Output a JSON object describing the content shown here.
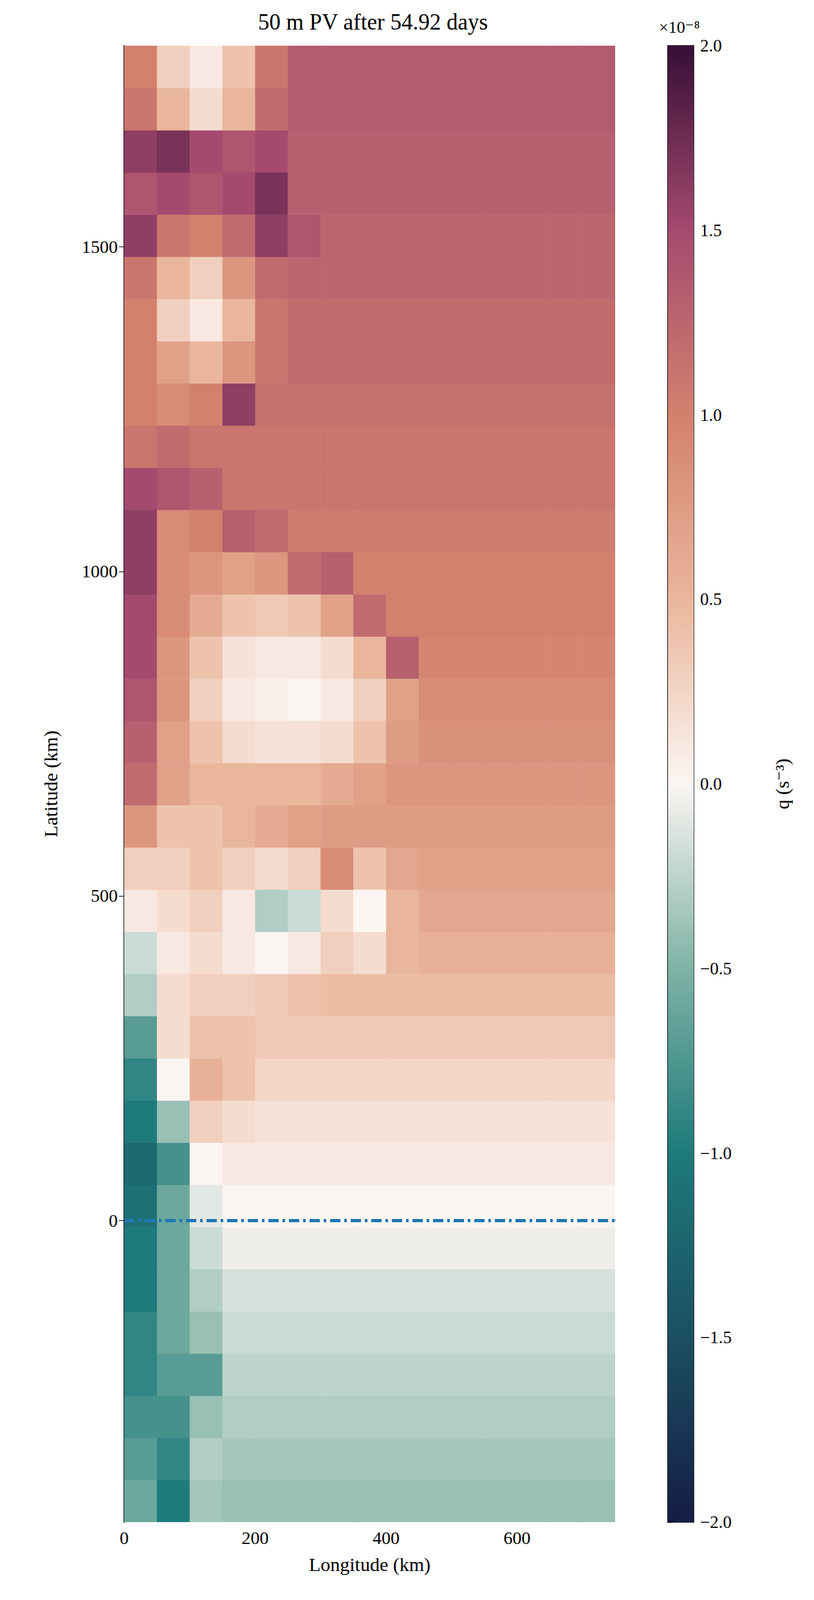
{
  "chart_data": {
    "type": "heatmap",
    "title": "50 m PV after 54.92 days",
    "xlabel": "Longitude (km)",
    "ylabel": "Latitude (km)",
    "xlim": [
      0,
      750
    ],
    "ylim": [
      -465,
      1810
    ],
    "xticks": [
      0,
      200,
      400,
      600
    ],
    "yticks": [
      0,
      500,
      1000,
      1500
    ],
    "grid": false,
    "reference_line": {
      "y": 0,
      "color": "#1f77b4",
      "line_style": "dashdot"
    },
    "colorbar_label": "q (s⁻³)",
    "colorbar_multiplier": "×10⁻⁸",
    "clim": [
      -2,
      2
    ],
    "cticks": [
      {
        "value": -2,
        "label": "−2.0"
      },
      {
        "value": -1.5,
        "label": "−1.5"
      },
      {
        "value": -1,
        "label": "−1.0"
      },
      {
        "value": -0.5,
        "label": "−0.5"
      },
      {
        "value": 0,
        "label": "0.0"
      },
      {
        "value": 0.5,
        "label": "0.5"
      },
      {
        "value": 1,
        "label": "1.0"
      },
      {
        "value": 1.5,
        "label": "1.5"
      },
      {
        "value": 2,
        "label": "2.0"
      }
    ],
    "colormap": [
      "#151d44",
      "#1b4f63",
      "#1e7a7b",
      "#7fb3a6",
      "#fbf5f2",
      "#eab69b",
      "#d3816e",
      "#a54a6f",
      "#360e36"
    ],
    "x": [
      25,
      75,
      125,
      175,
      225,
      275,
      325,
      375,
      425,
      475,
      525,
      575,
      625,
      675,
      725
    ],
    "y": [
      -432.5,
      -367.5,
      -302.5,
      -237.5,
      -172.5,
      -107.5,
      -42.5,
      22.5,
      87.5,
      152.5,
      217.5,
      282.5,
      347.5,
      412.5,
      477.5,
      542.5,
      607.5,
      672.5,
      737.5,
      802.5,
      867.5,
      932.5,
      997.5,
      1062.5,
      1127.5,
      1192.5,
      1257.5,
      1322.5,
      1387.5,
      1452.5,
      1517.5,
      1582.5,
      1647.5,
      1712.5,
      1777.5
    ],
    "cells": [
      [
        -0.6,
        -1.0,
        -0.35,
        -0.4,
        -0.4,
        -0.4,
        -0.4,
        -0.4,
        -0.4,
        -0.4,
        -0.4,
        -0.4,
        -0.4,
        -0.4,
        -0.4
      ],
      [
        -0.7,
        -0.9,
        -0.3,
        -0.35,
        -0.35,
        -0.35,
        -0.35,
        -0.35,
        -0.35,
        -0.35,
        -0.35,
        -0.35,
        -0.35,
        -0.35,
        -0.35
      ],
      [
        -0.8,
        -0.8,
        -0.4,
        -0.3,
        -0.3,
        -0.3,
        -0.3,
        -0.3,
        -0.3,
        -0.3,
        -0.3,
        -0.3,
        -0.3,
        -0.3,
        -0.3
      ],
      [
        -0.9,
        -0.7,
        -0.7,
        -0.25,
        -0.25,
        -0.25,
        -0.25,
        -0.25,
        -0.25,
        -0.25,
        -0.25,
        -0.25,
        -0.25,
        -0.25,
        -0.25
      ],
      [
        -0.9,
        -0.6,
        -0.4,
        -0.2,
        -0.2,
        -0.2,
        -0.2,
        -0.2,
        -0.2,
        -0.2,
        -0.2,
        -0.2,
        -0.2,
        -0.2,
        -0.2
      ],
      [
        -1.0,
        -0.6,
        -0.3,
        -0.15,
        -0.15,
        -0.15,
        -0.15,
        -0.15,
        -0.15,
        -0.15,
        -0.15,
        -0.15,
        -0.15,
        -0.15,
        -0.15
      ],
      [
        -1.0,
        -0.6,
        -0.2,
        -0.05,
        -0.05,
        -0.05,
        -0.05,
        -0.05,
        -0.05,
        -0.05,
        -0.05,
        -0.05,
        -0.05,
        -0.05,
        -0.05
      ],
      [
        -1.1,
        -0.6,
        -0.1,
        0.0,
        0.0,
        0.0,
        0.0,
        0.0,
        0.0,
        0.0,
        0.0,
        0.0,
        0.0,
        0.0,
        0.0
      ],
      [
        -1.2,
        -0.8,
        0.0,
        0.1,
        0.1,
        0.1,
        0.1,
        0.1,
        0.1,
        0.1,
        0.1,
        0.1,
        0.1,
        0.1,
        0.1
      ],
      [
        -1.0,
        -0.4,
        0.3,
        0.2,
        0.15,
        0.15,
        0.15,
        0.15,
        0.15,
        0.15,
        0.15,
        0.15,
        0.15,
        0.15,
        0.15
      ],
      [
        -0.9,
        0.0,
        0.55,
        0.4,
        0.25,
        0.25,
        0.25,
        0.25,
        0.25,
        0.25,
        0.25,
        0.25,
        0.25,
        0.25,
        0.25
      ],
      [
        -0.7,
        0.2,
        0.4,
        0.4,
        0.35,
        0.35,
        0.35,
        0.35,
        0.35,
        0.35,
        0.35,
        0.35,
        0.35,
        0.35,
        0.35
      ],
      [
        -0.3,
        0.2,
        0.3,
        0.3,
        0.35,
        0.4,
        0.45,
        0.45,
        0.45,
        0.45,
        0.45,
        0.45,
        0.45,
        0.45,
        0.45
      ],
      [
        -0.2,
        0.1,
        0.2,
        0.1,
        0.0,
        0.1,
        0.3,
        0.2,
        0.5,
        0.55,
        0.55,
        0.55,
        0.55,
        0.55,
        0.55
      ],
      [
        0.1,
        0.2,
        0.3,
        0.1,
        -0.3,
        -0.2,
        0.2,
        0.0,
        0.5,
        0.65,
        0.65,
        0.65,
        0.65,
        0.65,
        0.65
      ],
      [
        0.3,
        0.3,
        0.4,
        0.3,
        0.2,
        0.3,
        0.9,
        0.4,
        0.65,
        0.7,
        0.7,
        0.7,
        0.7,
        0.7,
        0.7
      ],
      [
        0.8,
        0.4,
        0.4,
        0.5,
        0.6,
        0.7,
        0.75,
        0.75,
        0.75,
        0.75,
        0.75,
        0.75,
        0.75,
        0.75,
        0.75
      ],
      [
        1.2,
        0.7,
        0.5,
        0.5,
        0.5,
        0.5,
        0.6,
        0.7,
        0.8,
        0.8,
        0.8,
        0.8,
        0.8,
        0.8,
        0.8
      ],
      [
        1.3,
        0.7,
        0.4,
        0.2,
        0.15,
        0.15,
        0.2,
        0.4,
        0.75,
        0.85,
        0.85,
        0.85,
        0.85,
        0.85,
        0.85
      ],
      [
        1.4,
        0.8,
        0.3,
        0.1,
        0.05,
        0.0,
        0.1,
        0.3,
        0.7,
        0.9,
        0.9,
        0.9,
        0.9,
        0.9,
        0.9
      ],
      [
        1.5,
        0.8,
        0.4,
        0.15,
        0.1,
        0.1,
        0.2,
        0.5,
        1.3,
        0.95,
        0.95,
        0.95,
        0.95,
        0.95,
        0.95
      ],
      [
        1.5,
        0.9,
        0.6,
        0.4,
        0.35,
        0.4,
        0.7,
        1.2,
        1.0,
        1.0,
        1.0,
        1.0,
        1.0,
        1.0,
        1.0
      ],
      [
        1.6,
        0.9,
        0.8,
        0.7,
        0.8,
        1.2,
        1.3,
        1.0,
        1.0,
        1.0,
        1.0,
        1.0,
        1.0,
        1.0,
        1.0
      ],
      [
        1.6,
        0.9,
        1.0,
        1.3,
        1.2,
        1.05,
        1.05,
        1.05,
        1.05,
        1.05,
        1.05,
        1.05,
        1.05,
        1.05,
        1.05
      ],
      [
        1.5,
        1.4,
        1.3,
        1.1,
        1.1,
        1.1,
        1.1,
        1.1,
        1.1,
        1.1,
        1.1,
        1.1,
        1.1,
        1.1,
        1.1
      ],
      [
        1.1,
        1.2,
        1.1,
        1.1,
        1.1,
        1.1,
        1.1,
        1.1,
        1.1,
        1.1,
        1.1,
        1.1,
        1.1,
        1.1,
        1.1
      ],
      [
        1.0,
        0.9,
        1.0,
        1.6,
        1.15,
        1.15,
        1.15,
        1.15,
        1.15,
        1.15,
        1.15,
        1.15,
        1.15,
        1.15,
        1.15
      ],
      [
        1.0,
        0.7,
        0.5,
        0.8,
        1.1,
        1.2,
        1.2,
        1.2,
        1.2,
        1.2,
        1.2,
        1.2,
        1.2,
        1.2,
        1.2
      ],
      [
        1.0,
        0.3,
        0.1,
        0.5,
        1.1,
        1.2,
        1.2,
        1.2,
        1.2,
        1.2,
        1.2,
        1.2,
        1.2,
        1.2,
        1.2
      ],
      [
        1.1,
        0.5,
        0.3,
        0.8,
        1.2,
        1.25,
        1.25,
        1.25,
        1.25,
        1.25,
        1.25,
        1.25,
        1.25,
        1.25,
        1.25
      ],
      [
        1.6,
        1.1,
        1.0,
        1.2,
        1.6,
        1.4,
        1.25,
        1.25,
        1.25,
        1.25,
        1.25,
        1.25,
        1.25,
        1.25,
        1.25
      ],
      [
        1.4,
        1.5,
        1.4,
        1.5,
        1.7,
        1.3,
        1.3,
        1.3,
        1.3,
        1.3,
        1.3,
        1.3,
        1.3,
        1.3,
        1.3
      ],
      [
        1.6,
        1.7,
        1.5,
        1.4,
        1.5,
        1.3,
        1.3,
        1.3,
        1.3,
        1.3,
        1.3,
        1.3,
        1.3,
        1.3,
        1.3
      ],
      [
        1.1,
        0.5,
        0.2,
        0.5,
        1.2,
        1.35,
        1.35,
        1.35,
        1.35,
        1.35,
        1.35,
        1.35,
        1.35,
        1.35,
        1.35
      ],
      [
        1.0,
        0.3,
        0.1,
        0.4,
        1.1,
        1.35,
        1.35,
        1.35,
        1.35,
        1.35,
        1.35,
        1.35,
        1.35,
        1.35,
        1.35
      ]
    ]
  }
}
